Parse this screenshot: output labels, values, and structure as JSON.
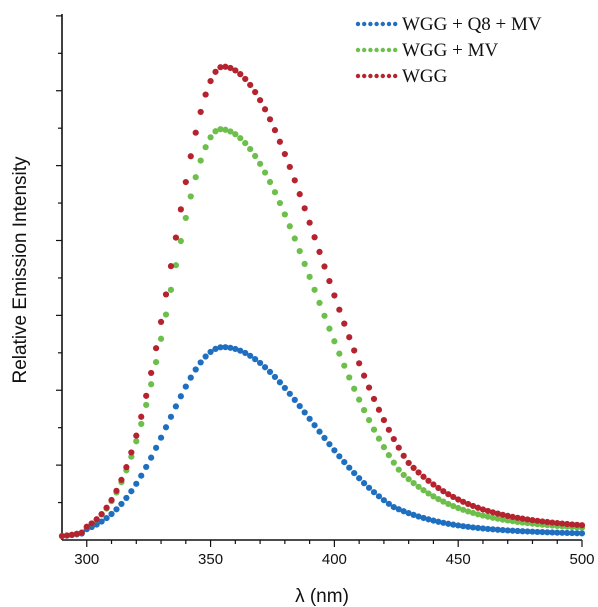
{
  "chart_data": {
    "type": "scatter",
    "xlabel": "λ (nm)",
    "ylabel": "Relative Emission Intensity",
    "xlim": [
      290,
      500
    ],
    "ylim": [
      0,
      1.05
    ],
    "x_ticks": [
      300,
      350,
      400,
      450,
      500
    ],
    "y_ticks_labeled": false,
    "y_minor_ticks": 14,
    "grid": false,
    "legend_position": "top-right",
    "series": [
      {
        "name": "WGG + Q8 + MV",
        "color": "#1f6fc1",
        "peak_x": 355,
        "peak_y": 0.385,
        "width_left": 22,
        "width_right": 36,
        "baseline": 0.005
      },
      {
        "name": "WGG + MV",
        "color": "#6cbf4a",
        "peak_x": 354,
        "peak_y": 0.82,
        "width_left": 20,
        "width_right": 38,
        "baseline": 0.005
      },
      {
        "name": "WGG",
        "color": "#b5232f",
        "peak_x": 355,
        "peak_y": 0.945,
        "width_left": 20,
        "width_right": 39,
        "baseline": 0.005
      }
    ]
  }
}
